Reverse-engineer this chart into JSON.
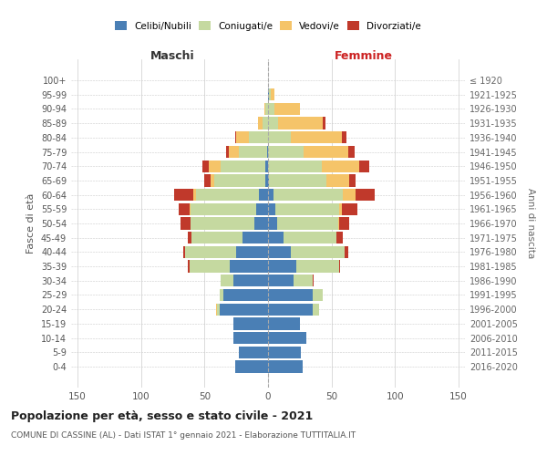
{
  "age_groups": [
    "0-4",
    "5-9",
    "10-14",
    "15-19",
    "20-24",
    "25-29",
    "30-34",
    "35-39",
    "40-44",
    "45-49",
    "50-54",
    "55-59",
    "60-64",
    "65-69",
    "70-74",
    "75-79",
    "80-84",
    "85-89",
    "90-94",
    "95-99",
    "100+"
  ],
  "birth_years": [
    "2016-2020",
    "2011-2015",
    "2006-2010",
    "2001-2005",
    "1996-2000",
    "1991-1995",
    "1986-1990",
    "1981-1985",
    "1976-1980",
    "1971-1975",
    "1966-1970",
    "1961-1965",
    "1956-1960",
    "1951-1955",
    "1946-1950",
    "1941-1945",
    "1936-1940",
    "1931-1935",
    "1926-1930",
    "1921-1925",
    "≤ 1920"
  ],
  "maschi": {
    "celibi": [
      26,
      23,
      27,
      27,
      38,
      35,
      27,
      30,
      25,
      20,
      11,
      9,
      7,
      2,
      2,
      1,
      0,
      0,
      0,
      0,
      0
    ],
    "coniugati": [
      0,
      0,
      0,
      0,
      2,
      3,
      10,
      32,
      40,
      40,
      50,
      52,
      50,
      40,
      35,
      22,
      15,
      4,
      2,
      0,
      0
    ],
    "vedovi": [
      0,
      0,
      0,
      0,
      1,
      0,
      0,
      0,
      0,
      0,
      0,
      1,
      2,
      3,
      10,
      8,
      10,
      4,
      1,
      0,
      0
    ],
    "divorziati": [
      0,
      0,
      0,
      0,
      0,
      0,
      0,
      1,
      2,
      3,
      8,
      8,
      15,
      5,
      5,
      2,
      1,
      0,
      0,
      0,
      0
    ]
  },
  "femmine": {
    "nubili": [
      27,
      26,
      30,
      25,
      35,
      35,
      20,
      22,
      18,
      12,
      7,
      6,
      4,
      1,
      0,
      0,
      0,
      0,
      0,
      1,
      0
    ],
    "coniugate": [
      0,
      0,
      0,
      0,
      5,
      8,
      15,
      34,
      42,
      42,
      48,
      50,
      55,
      45,
      42,
      28,
      18,
      8,
      5,
      1,
      0
    ],
    "vedove": [
      0,
      0,
      0,
      0,
      0,
      0,
      0,
      0,
      0,
      0,
      1,
      2,
      10,
      18,
      30,
      35,
      40,
      35,
      20,
      3,
      0
    ],
    "divorziate": [
      0,
      0,
      0,
      0,
      0,
      0,
      1,
      1,
      3,
      5,
      8,
      12,
      15,
      5,
      8,
      5,
      4,
      2,
      0,
      0,
      0
    ]
  },
  "colors": {
    "celibi": "#4a7fb5",
    "coniugati": "#c5d9a0",
    "vedovi": "#f5c469",
    "divorziati": "#c0392b"
  },
  "title": "Popolazione per età, sesso e stato civile - 2021",
  "subtitle": "COMUNE DI CASSINE (AL) - Dati ISTAT 1° gennaio 2021 - Elaborazione TUTTITALIA.IT",
  "xlim": 155,
  "xlabel_maschi": "Maschi",
  "xlabel_femmine": "Femmine",
  "ylabel_left": "Fasce di età",
  "ylabel_right": "Anni di nascita",
  "maschi_color": "#333333",
  "femmine_color": "#cc2222",
  "bg_color": "#ffffff",
  "grid_color": "#cccccc"
}
